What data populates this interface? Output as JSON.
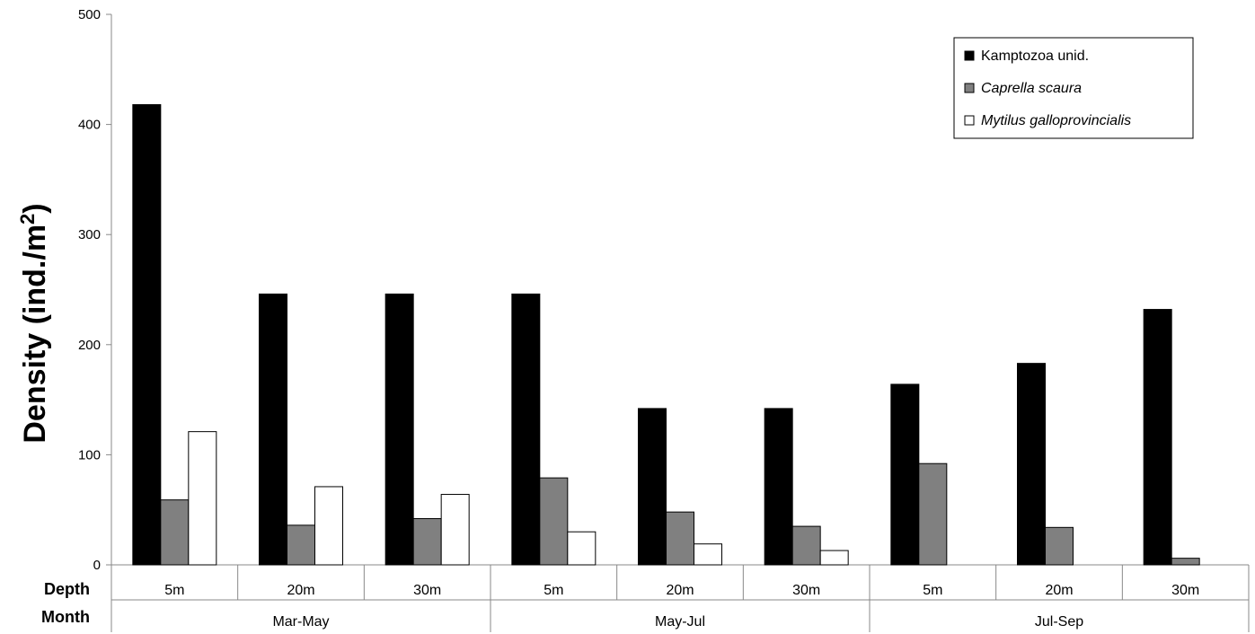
{
  "chart_data": {
    "type": "bar",
    "ylabel": "Density (ind./m",
    "ylabel_superscript": "2",
    "ylabel_suffix": ")",
    "ylim": [
      0,
      500
    ],
    "yticks": [
      0,
      100,
      200,
      300,
      400,
      500
    ],
    "grid": false,
    "legend_position": "top-right",
    "row_labels": {
      "depth": "Depth",
      "month": "Month"
    },
    "depth_labels": [
      "5m",
      "20m",
      "30m",
      "5m",
      "20m",
      "30m",
      "5m",
      "20m",
      "30m"
    ],
    "month_groups": [
      {
        "label": "Mar-May",
        "span": 3
      },
      {
        "label": "May-Jul",
        "span": 3
      },
      {
        "label": "Jul-Sep",
        "span": 3
      }
    ],
    "series": [
      {
        "name": "Kamptozoa unid.",
        "italic": false,
        "color": "#000000",
        "values": [
          418,
          246,
          246,
          246,
          142,
          142,
          164,
          183,
          232
        ]
      },
      {
        "name": "Caprella scaura",
        "italic": true,
        "color": "#808080",
        "values": [
          59,
          36,
          42,
          79,
          48,
          35,
          92,
          34,
          6
        ]
      },
      {
        "name": "Mytilus galloprovincialis",
        "italic": true,
        "color": "#ffffff",
        "values": [
          121,
          71,
          64,
          30,
          19,
          13,
          0,
          0,
          0
        ]
      }
    ]
  }
}
